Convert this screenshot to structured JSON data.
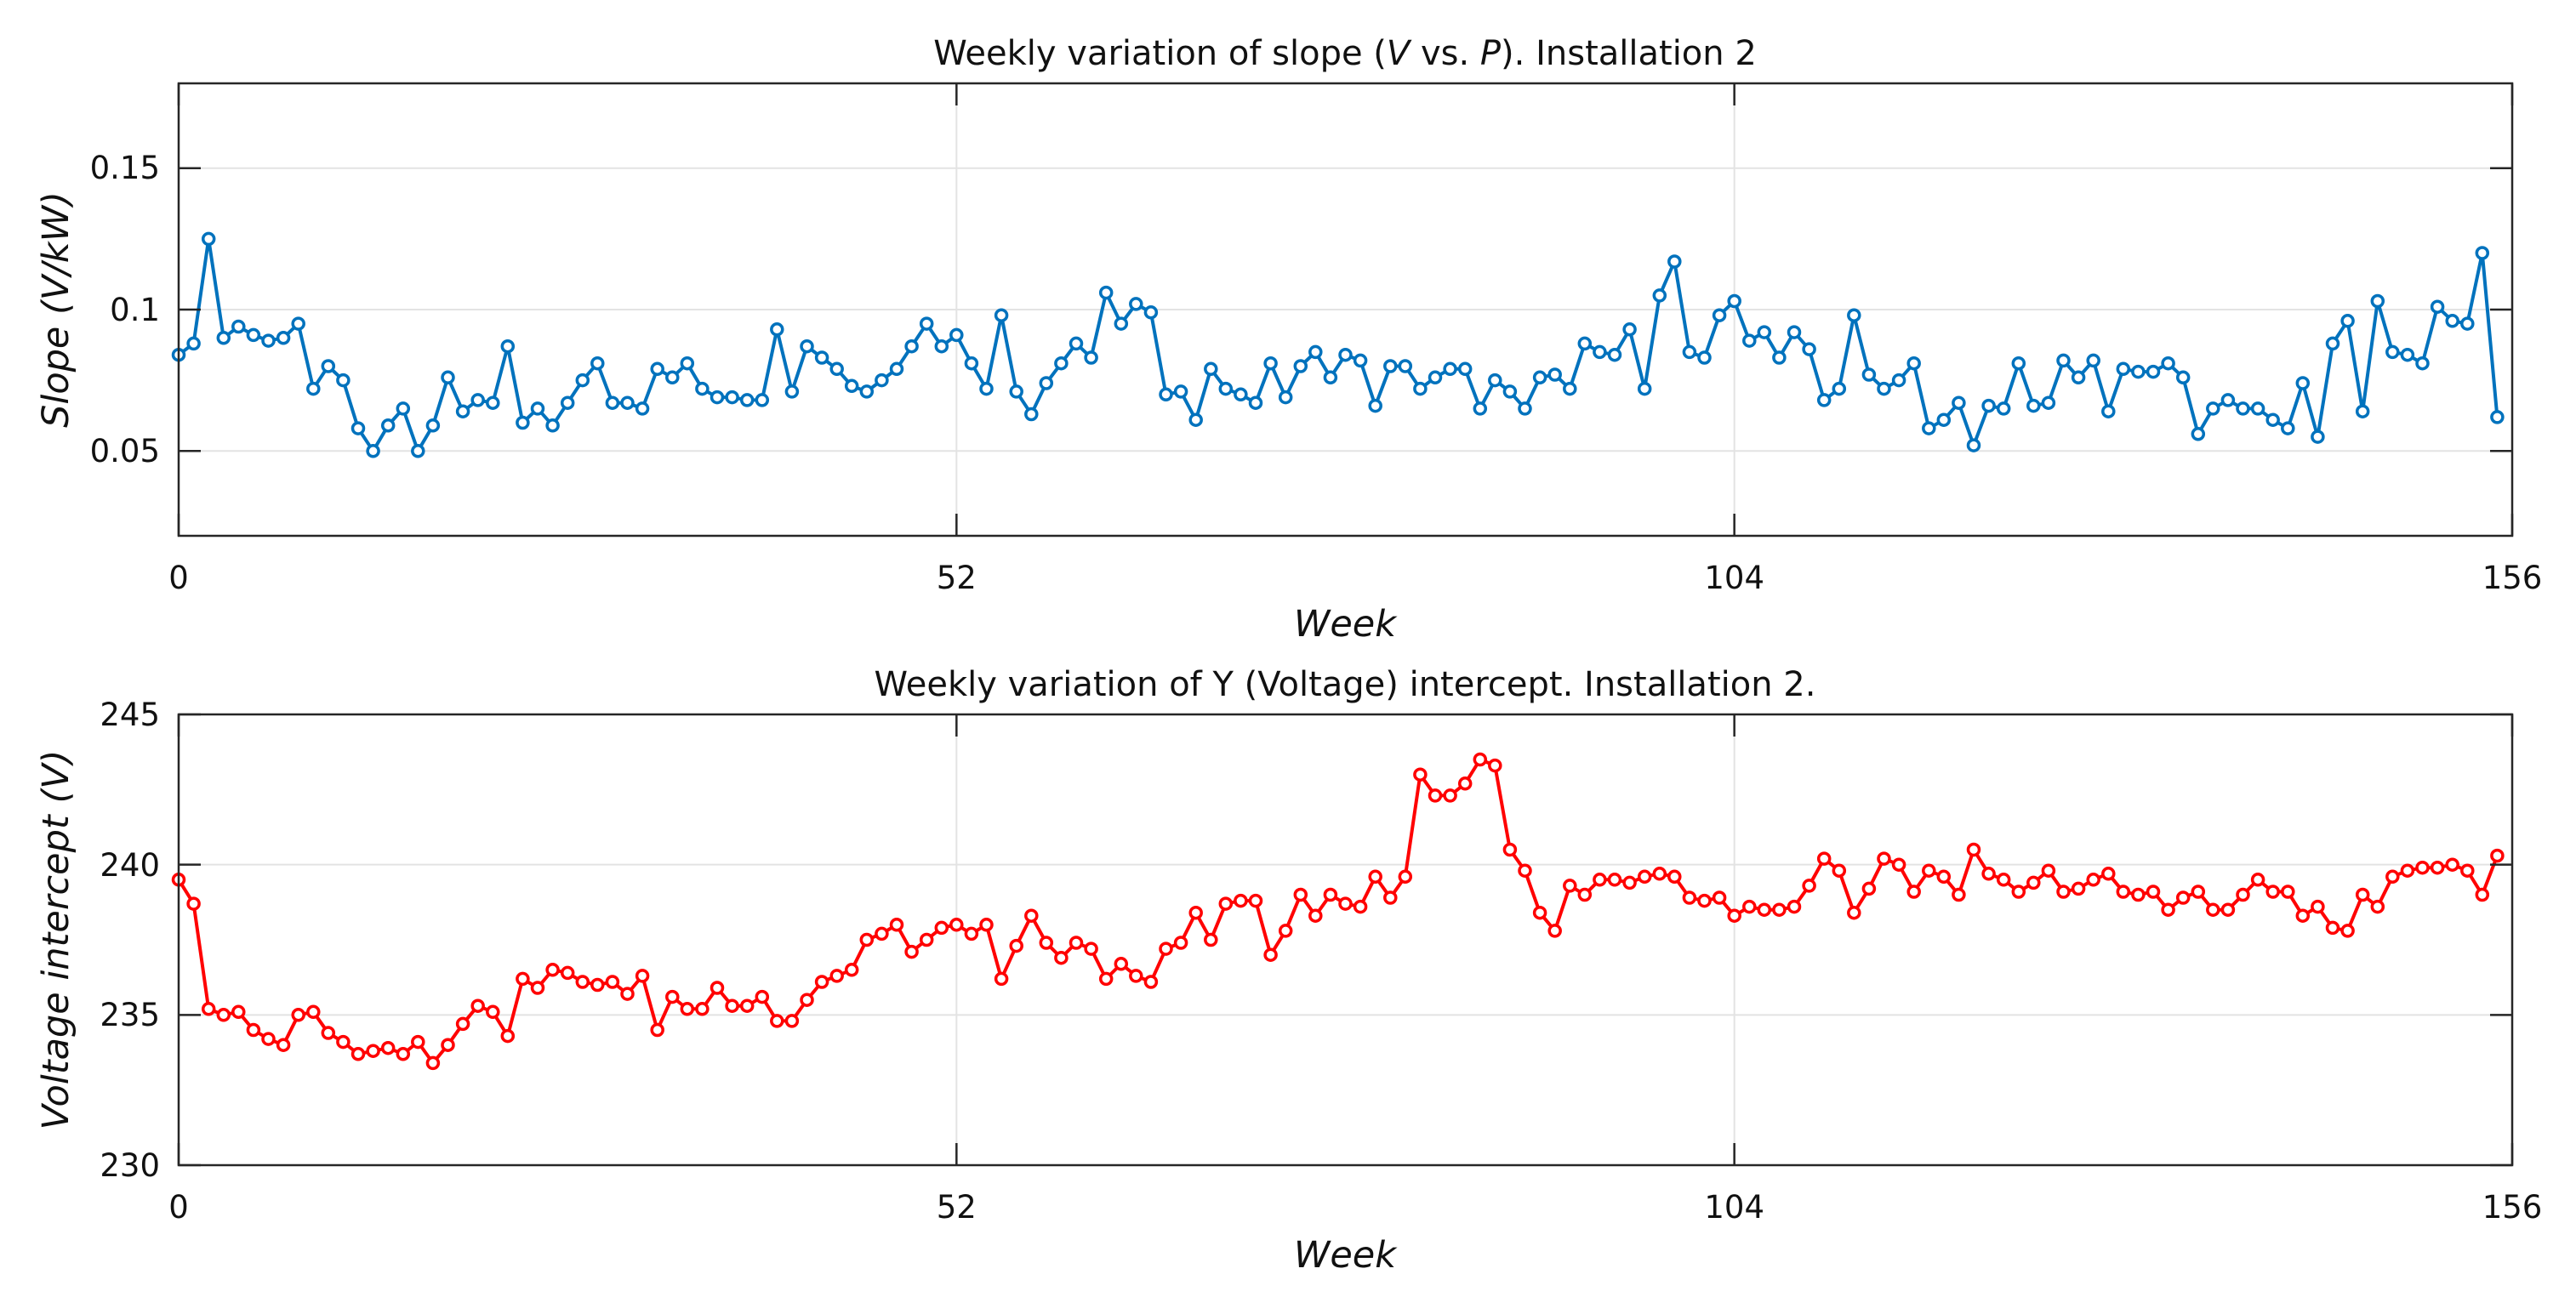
{
  "chart_data": [
    {
      "type": "line",
      "title": "Weekly variation of slope (V vs. P). Installation 2",
      "title_parts": [
        "Weekly variation of slope (",
        "V",
        " vs. ",
        "P",
        "). Installation 2"
      ],
      "xlabel": "Week",
      "ylabel": "Slope (V/kW)",
      "xlim": [
        0,
        156
      ],
      "ylim": [
        0.02,
        0.18
      ],
      "xticks": [
        0,
        52,
        104,
        156
      ],
      "xtick_labels": [
        "0",
        "52",
        "104",
        "156"
      ],
      "yticks": [
        0.05,
        0.1,
        0.15
      ],
      "ytick_labels": [
        "0.05",
        "0.1",
        "0.15"
      ],
      "grid": true,
      "marker": "circle",
      "color": "#0072BD",
      "series": [
        {
          "name": "Slope",
          "x": [
            0,
            1,
            2,
            3,
            4,
            5,
            6,
            7,
            8,
            9,
            10,
            11,
            12,
            13,
            14,
            15,
            16,
            17,
            18,
            19,
            20,
            21,
            22,
            23,
            24,
            25,
            26,
            27,
            28,
            29,
            30,
            31,
            32,
            33,
            34,
            35,
            36,
            37,
            38,
            39,
            40,
            41,
            42,
            43,
            44,
            45,
            46,
            47,
            48,
            49,
            50,
            51,
            52,
            53,
            54,
            55,
            56,
            57,
            58,
            59,
            60,
            61,
            62,
            63,
            64,
            65,
            66,
            67,
            68,
            69,
            70,
            71,
            72,
            73,
            74,
            75,
            76,
            77,
            78,
            79,
            80,
            81,
            82,
            83,
            84,
            85,
            86,
            87,
            88,
            89,
            90,
            91,
            92,
            93,
            94,
            95,
            96,
            97,
            98,
            99,
            100,
            101,
            102,
            103,
            104,
            105,
            106,
            107,
            108,
            109,
            110,
            111,
            112,
            113,
            114,
            115,
            116,
            117,
            118,
            119,
            120,
            121,
            122,
            123,
            124,
            125,
            126,
            127,
            128,
            129,
            130,
            131,
            132,
            133,
            134,
            135,
            136,
            137,
            138,
            139,
            140,
            141,
            142,
            143,
            144,
            145,
            146,
            147,
            148,
            149,
            150,
            151,
            152,
            153,
            154,
            155
          ],
          "values": [
            0.084,
            0.088,
            0.125,
            0.09,
            0.094,
            0.091,
            0.089,
            0.09,
            0.095,
            0.072,
            0.08,
            0.075,
            0.058,
            0.05,
            0.059,
            0.065,
            0.05,
            0.059,
            0.076,
            0.064,
            0.068,
            0.067,
            0.087,
            0.06,
            0.065,
            0.059,
            0.067,
            0.075,
            0.081,
            0.067,
            0.067,
            0.065,
            0.079,
            0.076,
            0.081,
            0.072,
            0.069,
            0.069,
            0.068,
            0.068,
            0.093,
            0.071,
            0.087,
            0.083,
            0.079,
            0.073,
            0.071,
            0.075,
            0.079,
            0.087,
            0.095,
            0.087,
            0.091,
            0.081,
            0.072,
            0.098,
            0.071,
            0.063,
            0.074,
            0.081,
            0.088,
            0.083,
            0.106,
            0.095,
            0.102,
            0.099,
            0.07,
            0.071,
            0.061,
            0.079,
            0.072,
            0.07,
            0.067,
            0.081,
            0.069,
            0.08,
            0.085,
            0.076,
            0.084,
            0.082,
            0.066,
            0.08,
            0.08,
            0.072,
            0.076,
            0.079,
            0.079,
            0.065,
            0.075,
            0.071,
            0.065,
            0.076,
            0.077,
            0.072,
            0.088,
            0.085,
            0.084,
            0.093,
            0.072,
            0.105,
            0.117,
            0.085,
            0.083,
            0.098,
            0.103,
            0.089,
            0.092,
            0.083,
            0.092,
            0.086,
            0.068,
            0.072,
            0.098,
            0.077,
            0.072,
            0.075,
            0.081,
            0.058,
            0.061,
            0.067,
            0.052,
            0.066,
            0.065,
            0.081,
            0.066,
            0.067,
            0.082,
            0.076,
            0.082,
            0.064,
            0.079,
            0.078,
            0.078,
            0.081,
            0.076,
            0.056,
            0.065,
            0.068,
            0.065,
            0.065,
            0.061,
            0.058,
            0.074,
            0.055,
            0.088,
            0.096,
            0.064,
            0.103,
            0.085,
            0.084,
            0.081,
            0.101,
            0.096,
            0.095,
            0.12,
            0.062
          ]
        }
      ]
    },
    {
      "type": "line",
      "title": "Weekly variation of Y (Voltage) intercept. Installation 2.",
      "xlabel": "Week",
      "ylabel": "Voltage intercept (V)",
      "xlim": [
        0,
        156
      ],
      "ylim": [
        230,
        245
      ],
      "xticks": [
        0,
        52,
        104,
        156
      ],
      "xtick_labels": [
        "0",
        "52",
        "104",
        "156"
      ],
      "yticks": [
        230,
        235,
        240,
        245
      ],
      "ytick_labels": [
        "230",
        "235",
        "240",
        "245"
      ],
      "grid": true,
      "marker": "circle",
      "color": "#FF0000",
      "series": [
        {
          "name": "Voltage intercept",
          "x": [
            0,
            1,
            2,
            3,
            4,
            5,
            6,
            7,
            8,
            9,
            10,
            11,
            12,
            13,
            14,
            15,
            16,
            17,
            18,
            19,
            20,
            21,
            22,
            23,
            24,
            25,
            26,
            27,
            28,
            29,
            30,
            31,
            32,
            33,
            34,
            35,
            36,
            37,
            38,
            39,
            40,
            41,
            42,
            43,
            44,
            45,
            46,
            47,
            48,
            49,
            50,
            51,
            52,
            53,
            54,
            55,
            56,
            57,
            58,
            59,
            60,
            61,
            62,
            63,
            64,
            65,
            66,
            67,
            68,
            69,
            70,
            71,
            72,
            73,
            74,
            75,
            76,
            77,
            78,
            79,
            80,
            81,
            82,
            83,
            84,
            85,
            86,
            87,
            88,
            89,
            90,
            91,
            92,
            93,
            94,
            95,
            96,
            97,
            98,
            99,
            100,
            101,
            102,
            103,
            104,
            105,
            106,
            107,
            108,
            109,
            110,
            111,
            112,
            113,
            114,
            115,
            116,
            117,
            118,
            119,
            120,
            121,
            122,
            123,
            124,
            125,
            126,
            127,
            128,
            129,
            130,
            131,
            132,
            133,
            134,
            135,
            136,
            137,
            138,
            139,
            140,
            141,
            142,
            143,
            144,
            145,
            146,
            147,
            148,
            149,
            150,
            151,
            152,
            153,
            154,
            155
          ],
          "values": [
            239.5,
            238.7,
            235.2,
            235.0,
            235.1,
            234.5,
            234.2,
            234.0,
            235.0,
            235.1,
            234.4,
            234.1,
            233.7,
            233.8,
            233.9,
            233.7,
            234.1,
            233.4,
            234.0,
            234.7,
            235.3,
            235.1,
            234.3,
            236.2,
            235.9,
            236.5,
            236.4,
            236.1,
            236.0,
            236.1,
            235.7,
            236.3,
            234.5,
            235.6,
            235.2,
            235.2,
            235.9,
            235.3,
            235.3,
            235.6,
            234.8,
            234.8,
            235.5,
            236.1,
            236.3,
            236.5,
            237.5,
            237.7,
            238.0,
            237.1,
            237.5,
            237.9,
            238.0,
            237.7,
            238.0,
            236.2,
            237.3,
            238.3,
            237.4,
            236.9,
            237.4,
            237.2,
            236.2,
            236.7,
            236.3,
            236.1,
            237.2,
            237.4,
            238.4,
            237.5,
            238.7,
            238.8,
            238.8,
            237.0,
            237.8,
            239.0,
            238.3,
            239.0,
            238.7,
            238.6,
            239.6,
            238.9,
            239.6,
            243.0,
            242.3,
            242.3,
            242.7,
            243.5,
            243.3,
            240.5,
            239.8,
            238.4,
            237.8,
            239.3,
            239.0,
            239.5,
            239.5,
            239.4,
            239.6,
            239.7,
            239.6,
            238.9,
            238.8,
            238.9,
            238.3,
            238.6,
            238.5,
            238.5,
            238.6,
            239.3,
            240.2,
            239.8,
            238.4,
            239.2,
            240.2,
            240.0,
            239.1,
            239.8,
            239.6,
            239.0,
            240.5,
            239.7,
            239.5,
            239.1,
            239.4,
            239.8,
            239.1,
            239.2,
            239.5,
            239.7,
            239.1,
            239.0,
            239.1,
            238.5,
            238.9,
            239.1,
            238.5,
            238.5,
            239.0,
            239.5,
            239.1,
            239.1,
            238.3,
            238.6,
            237.9,
            237.8,
            239.0,
            238.6,
            239.6,
            239.8,
            239.9,
            239.9,
            240.0,
            239.8,
            239.0,
            240.3
          ]
        }
      ]
    }
  ]
}
